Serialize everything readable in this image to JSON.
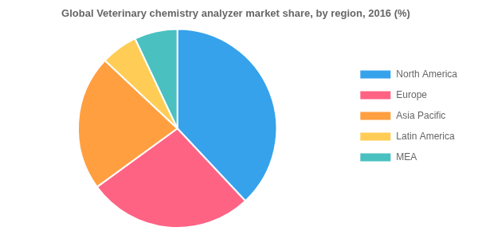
{
  "chart_data": {
    "type": "pie",
    "title": "Global Veterinary chemistry analyzer market share, by region, 2016 (%)",
    "categories": [
      "North America",
      "Europe",
      "Asia Pacific",
      "Latin America",
      "MEA"
    ],
    "values": [
      38,
      27,
      22,
      6,
      7
    ],
    "legend": "right"
  }
}
